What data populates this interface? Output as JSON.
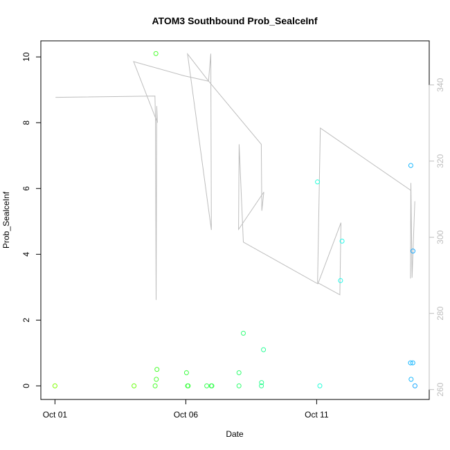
{
  "chart_data": {
    "type": "scatter",
    "title": "ATOM3 Southbound Prob_SealceInf",
    "xlabel": "Date",
    "ylabel": "Prob_SealceInf",
    "x_ticks": [
      "Oct 01",
      "Oct 06",
      "Oct 11"
    ],
    "ylim": [
      0,
      10
    ],
    "y_ticks": [
      "0",
      "2",
      "4",
      "6",
      "8",
      "10"
    ],
    "y2lim": [
      260,
      340
    ],
    "y2_ticks": [
      "260",
      "280",
      "300",
      "320",
      "340"
    ],
    "points": [
      {
        "x": "Oct 01",
        "y": 0.0,
        "color": "#80ff00"
      },
      {
        "x": "Oct 04",
        "y": 0.0,
        "color": "#6aff10"
      },
      {
        "x": "Oct 04",
        "y": 10.1,
        "color": "#4cff30"
      },
      {
        "x": "Oct 04",
        "y": 0.0,
        "color": "#4cff30"
      },
      {
        "x": "Oct 04",
        "y": 0.2,
        "color": "#4cff30"
      },
      {
        "x": "Oct 04",
        "y": 0.5,
        "color": "#4cff30"
      },
      {
        "x": "Oct 06",
        "y": 0.4,
        "color": "#3cff40"
      },
      {
        "x": "Oct 06",
        "y": 0.0,
        "color": "#3cff40"
      },
      {
        "x": "Oct 06",
        "y": 0.0,
        "color": "#3cff40"
      },
      {
        "x": "Oct 06",
        "y": 0.0,
        "color": "#36ff50"
      },
      {
        "x": "Oct 06",
        "y": 0.0,
        "color": "#36ff50"
      },
      {
        "x": "Oct 06",
        "y": 0.0,
        "color": "#36ff50"
      },
      {
        "x": "Oct 07",
        "y": 0.4,
        "color": "#30ff70"
      },
      {
        "x": "Oct 07",
        "y": 0.0,
        "color": "#30ff70"
      },
      {
        "x": "Oct 07",
        "y": 1.6,
        "color": "#30ff78"
      },
      {
        "x": "Oct 08",
        "y": 0.0,
        "color": "#2cff90"
      },
      {
        "x": "Oct 08",
        "y": 0.1,
        "color": "#2cff90"
      },
      {
        "x": "Oct 08",
        "y": 1.1,
        "color": "#2cff98"
      },
      {
        "x": "Oct 11",
        "y": 6.2,
        "color": "#22ffd8"
      },
      {
        "x": "Oct 11",
        "y": 0.0,
        "color": "#22ffd8"
      },
      {
        "x": "Oct 11",
        "y": 3.2,
        "color": "#20f8e8"
      },
      {
        "x": "Oct 11",
        "y": 4.4,
        "color": "#20f8e8"
      },
      {
        "x": "Oct 15",
        "y": 6.7,
        "color": "#1ab8ff"
      },
      {
        "x": "Oct 15",
        "y": 0.7,
        "color": "#1ab8ff"
      },
      {
        "x": "Oct 15",
        "y": 0.7,
        "color": "#1ab8ff"
      },
      {
        "x": "Oct 15",
        "y": 0.2,
        "color": "#1ab8ff"
      },
      {
        "x": "Oct 15",
        "y": 4.1,
        "color": "#18a8ff"
      },
      {
        "x": "Oct 15",
        "y": 0.0,
        "color": "#18a8ff"
      }
    ],
    "heading_line_color": "#bdbdbd"
  }
}
